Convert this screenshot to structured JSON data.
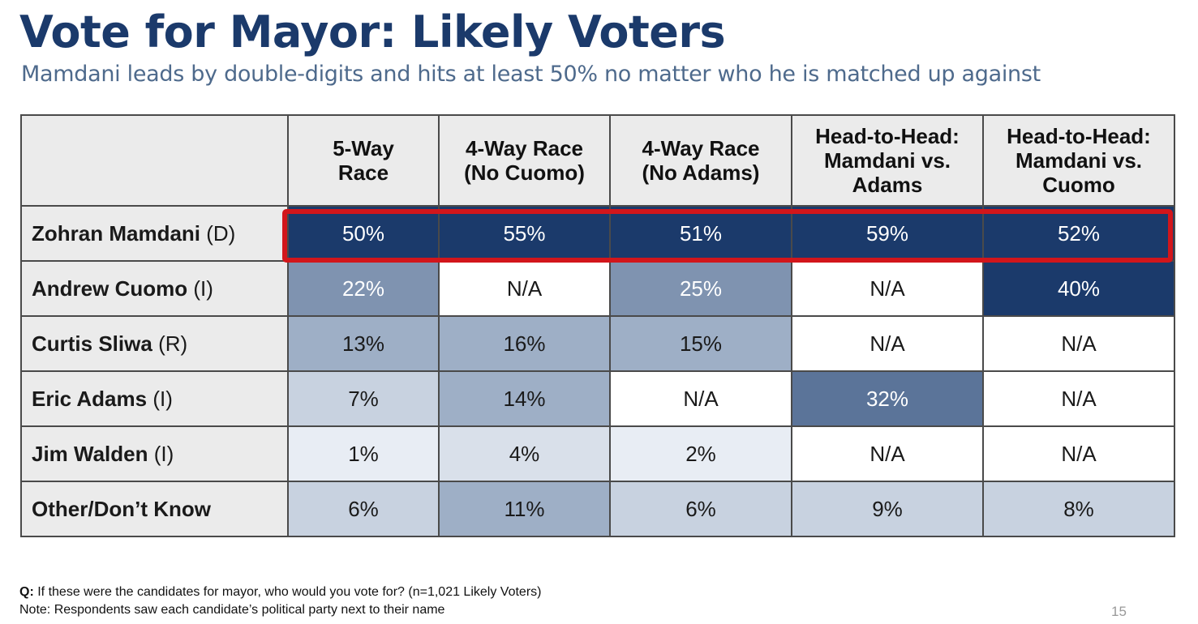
{
  "title": "Vote for Mayor: Likely Voters",
  "subtitle": "Mamdani leads by double-digits and hits at least 50% no matter who he is matched up against",
  "chart_data": {
    "type": "table",
    "columns": [
      [
        "5-Way",
        "Race"
      ],
      [
        "4-Way Race",
        "(No Cuomo)"
      ],
      [
        "4-Way Race",
        "(No Adams)"
      ],
      [
        "Head-to-Head:",
        "Mamdani vs.",
        "Adams"
      ],
      [
        "Head-to-Head:",
        "Mamdani vs.",
        "Cuomo"
      ]
    ],
    "rows": [
      {
        "name": "Zohran Mamdani",
        "party": "(D)",
        "values": [
          "50%",
          "55%",
          "51%",
          "59%",
          "52%"
        ],
        "highlighted": true
      },
      {
        "name": "Andrew Cuomo",
        "party": "(I)",
        "values": [
          "22%",
          "N/A",
          "25%",
          "N/A",
          "40%"
        ]
      },
      {
        "name": "Curtis Sliwa",
        "party": "(R)",
        "values": [
          "13%",
          "16%",
          "15%",
          "N/A",
          "N/A"
        ]
      },
      {
        "name": "Eric Adams",
        "party": "(I)",
        "values": [
          "7%",
          "14%",
          "N/A",
          "32%",
          "N/A"
        ]
      },
      {
        "name": "Jim Walden",
        "party": "(I)",
        "values": [
          "1%",
          "4%",
          "2%",
          "N/A",
          "N/A"
        ]
      },
      {
        "name": "Other/Don’t Know",
        "party": "",
        "values": [
          "6%",
          "11%",
          "6%",
          "9%",
          "8%"
        ]
      }
    ],
    "cell_colors": [
      [
        "#1b3a6b",
        "#1b3a6b",
        "#1b3a6b",
        "#1b3a6b",
        "#1b3a6b"
      ],
      [
        "#7f93b0",
        "#ffffff",
        "#7f93b0",
        "#ffffff",
        "#1b3a6b"
      ],
      [
        "#9eafc6",
        "#9eafc6",
        "#9eafc6",
        "#ffffff",
        "#ffffff"
      ],
      [
        "#c8d2e0",
        "#9eafc6",
        "#ffffff",
        "#5b7499",
        "#ffffff"
      ],
      [
        "#e8edf4",
        "#d9e0ea",
        "#e8edf4",
        "#ffffff",
        "#ffffff"
      ],
      [
        "#c8d2e0",
        "#9eafc6",
        "#c8d2e0",
        "#c8d2e0",
        "#c8d2e0"
      ]
    ],
    "highlight_color": "#d2161b"
  },
  "footnote": {
    "q_label": "Q:",
    "question": "If these were the candidates for mayor, who would you vote for? (n=1,021 Likely Voters)",
    "note": "Note: Respondents saw each candidate’s political party next to their name"
  },
  "page_number": "15"
}
